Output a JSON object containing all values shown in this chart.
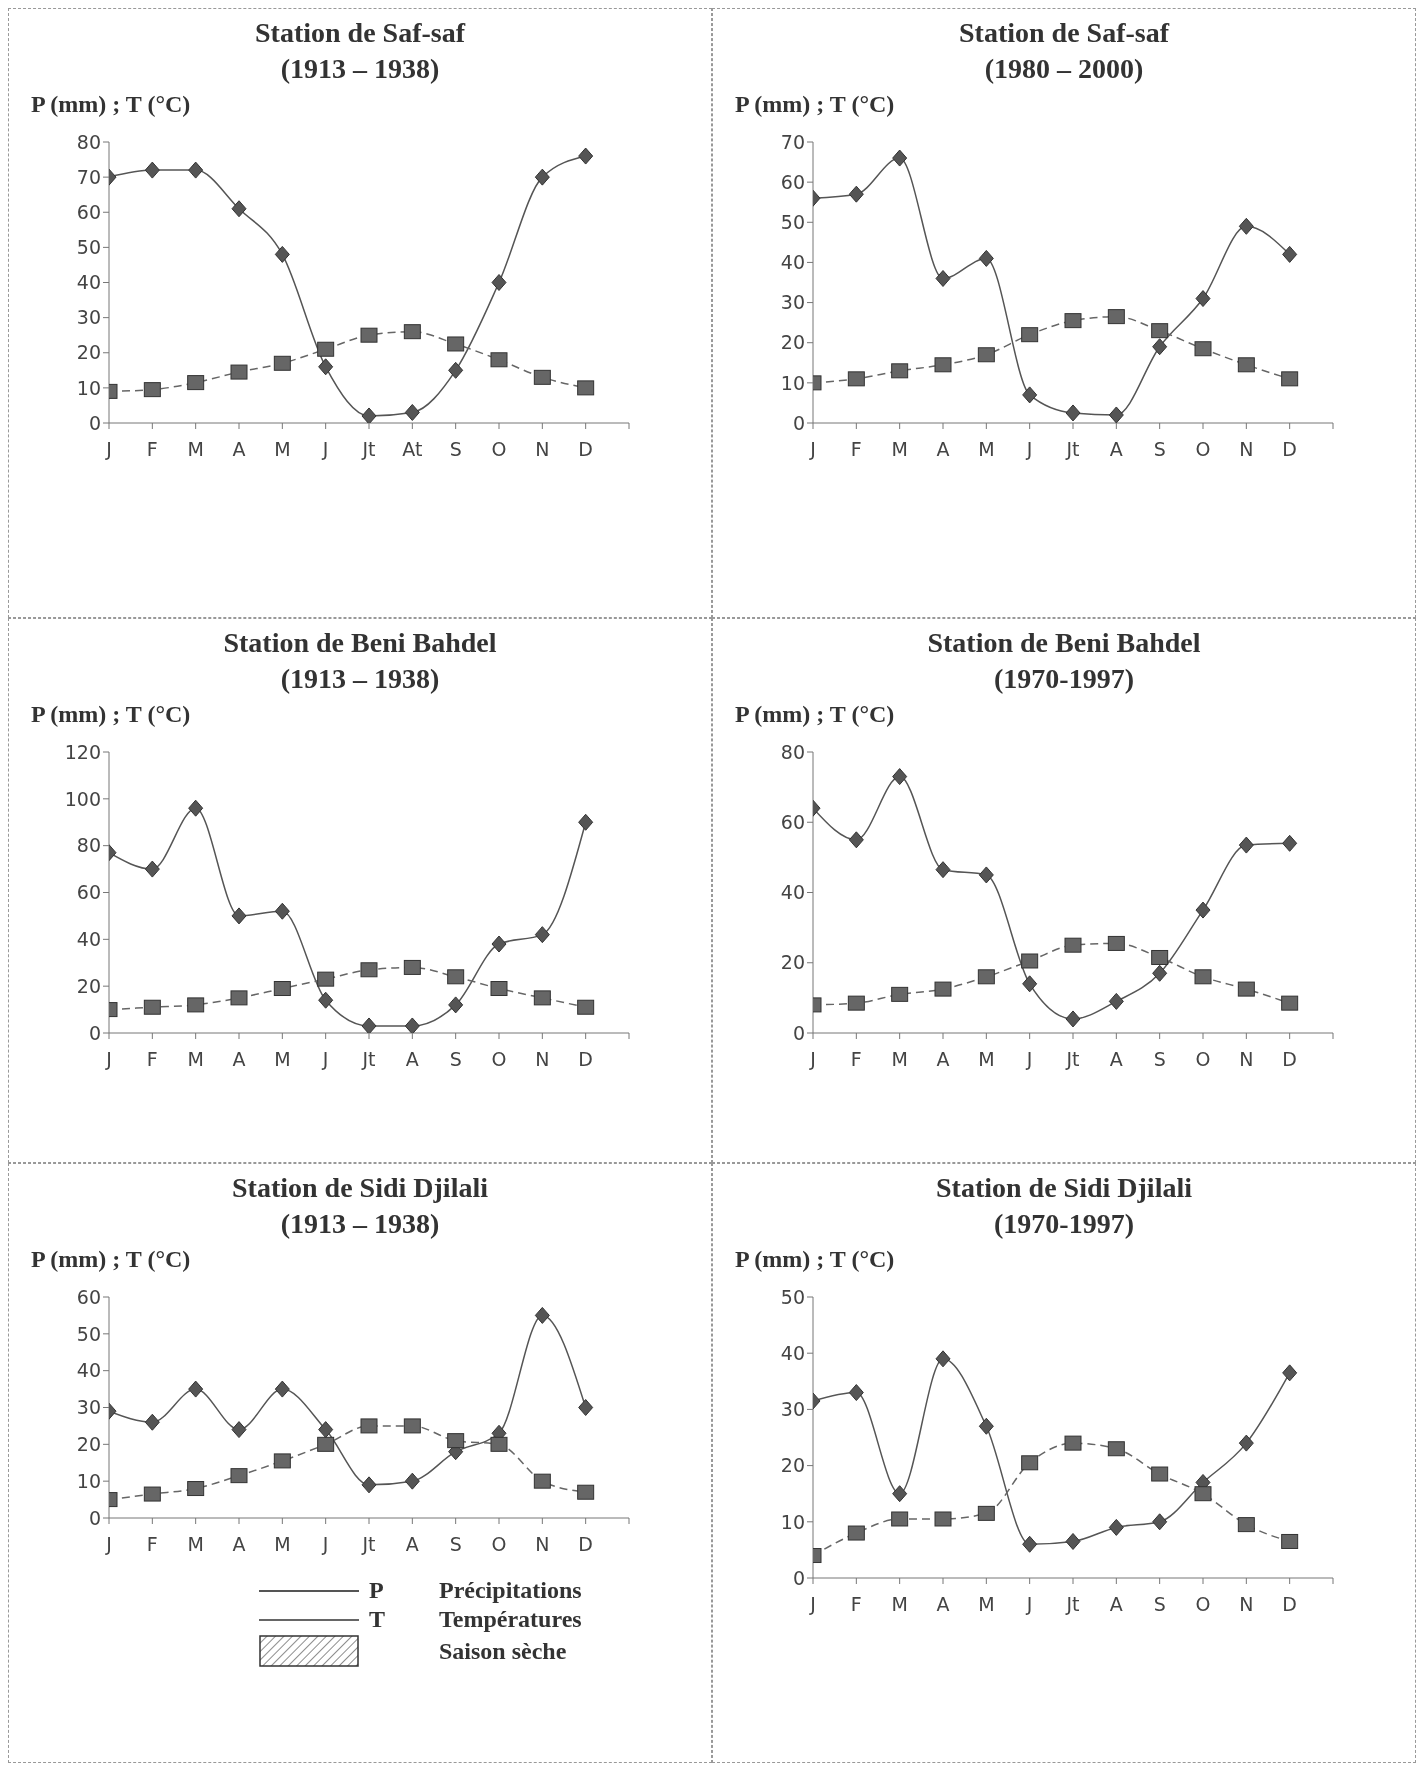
{
  "chart_data": [
    {
      "type": "line",
      "title": "Station de Saf-saf",
      "subtitle": "(1913 – 1938)",
      "ylabel": "P (mm) ; T (°C)",
      "categories": [
        "J",
        "F",
        "M",
        "A",
        "M",
        "J",
        "Jt",
        "At",
        "S",
        "O",
        "N",
        "D"
      ],
      "ylim": [
        0,
        80
      ],
      "yticks": [
        0,
        10,
        20,
        30,
        40,
        50,
        60,
        70,
        80
      ],
      "series": [
        {
          "color": "#555555",
          "marker": "diamond",
          "line_style": "solid",
          "values": [
            70,
            72,
            72,
            61,
            48,
            16,
            2,
            3,
            15,
            40,
            70,
            76
          ]
        },
        {
          "color": "#666666",
          "marker": "square",
          "line_style": "dashed",
          "values": [
            9,
            9.5,
            11.5,
            14.5,
            17,
            21,
            25,
            26,
            22.5,
            18,
            13,
            10
          ]
        }
      ]
    },
    {
      "type": "line",
      "title": "Station de Saf-saf",
      "subtitle": "(1980 – 2000)",
      "ylabel": "P (mm) ; T (°C)",
      "categories": [
        "J",
        "F",
        "M",
        "A",
        "M",
        "J",
        "Jt",
        "A",
        "S",
        "O",
        "N",
        "D"
      ],
      "ylim": [
        0,
        70
      ],
      "yticks": [
        0,
        10,
        20,
        30,
        40,
        50,
        60,
        70
      ],
      "series": [
        {
          "color": "#555555",
          "marker": "diamond",
          "line_style": "solid",
          "values": [
            56,
            57,
            66,
            36,
            41,
            7,
            2.5,
            2,
            19,
            31,
            49,
            42
          ]
        },
        {
          "color": "#666666",
          "marker": "square",
          "line_style": "dashed",
          "values": [
            10,
            11,
            13,
            14.5,
            17,
            22,
            25.5,
            26.5,
            23,
            18.5,
            14.5,
            11
          ]
        }
      ]
    },
    {
      "type": "line",
      "title": "Station de Beni Bahdel",
      "subtitle": "(1913 – 1938)",
      "ylabel": "P (mm) ; T (°C)",
      "categories": [
        "J",
        "F",
        "M",
        "A",
        "M",
        "J",
        "Jt",
        "A",
        "S",
        "O",
        "N",
        "D"
      ],
      "ylim": [
        0,
        120
      ],
      "yticks": [
        0,
        20,
        40,
        60,
        80,
        100,
        120
      ],
      "series": [
        {
          "color": "#555555",
          "marker": "diamond",
          "line_style": "solid",
          "values": [
            77,
            70,
            96,
            50,
            52,
            14,
            3,
            3,
            12,
            38,
            42,
            90
          ]
        },
        {
          "color": "#666666",
          "marker": "square",
          "line_style": "dashed",
          "values": [
            10,
            11,
            12,
            15,
            19,
            23,
            27,
            28,
            24,
            19,
            15,
            11
          ]
        }
      ]
    },
    {
      "type": "line",
      "title": "Station de Beni Bahdel",
      "subtitle": "(1970-1997)",
      "ylabel": "P (mm) ; T (°C)",
      "categories": [
        "J",
        "F",
        "M",
        "A",
        "M",
        "J",
        "Jt",
        "A",
        "S",
        "O",
        "N",
        "D"
      ],
      "ylim": [
        0,
        80
      ],
      "yticks": [
        0,
        20,
        40,
        60,
        80
      ],
      "series": [
        {
          "color": "#555555",
          "marker": "diamond",
          "line_style": "solid",
          "values": [
            64,
            55,
            73,
            46.5,
            45,
            14,
            4,
            9,
            17,
            35,
            53.5,
            54
          ]
        },
        {
          "color": "#666666",
          "marker": "square",
          "line_style": "dashed",
          "values": [
            8,
            8.5,
            11,
            12.5,
            16,
            20.5,
            25,
            25.5,
            21.5,
            16,
            12.5,
            8.5
          ]
        }
      ]
    },
    {
      "type": "line",
      "title": "Station de Sidi Djilali",
      "subtitle": "(1913 – 1938)",
      "ylabel": "P (mm) ; T (°C)",
      "categories": [
        "J",
        "F",
        "M",
        "A",
        "M",
        "J",
        "Jt",
        "A",
        "S",
        "O",
        "N",
        "D"
      ],
      "ylim": [
        0,
        60
      ],
      "yticks": [
        0,
        10,
        20,
        30,
        40,
        50,
        60
      ],
      "legend": "bottom",
      "annotations": [
        "Précipitations",
        "Températures",
        "Saison sèche"
      ],
      "series": [
        {
          "name": "P",
          "color": "#555555",
          "marker": "diamond",
          "line_style": "solid",
          "values": [
            29,
            26,
            35,
            24,
            35,
            24,
            9,
            10,
            18,
            23,
            55,
            30
          ]
        },
        {
          "name": "T",
          "color": "#666666",
          "marker": "square",
          "line_style": "dashed",
          "values": [
            5,
            6.5,
            8,
            11.5,
            15.5,
            20,
            25,
            25,
            21,
            20,
            10,
            7
          ]
        }
      ]
    },
    {
      "type": "line",
      "title": "Station de Sidi Djilali",
      "subtitle": "(1970-1997)",
      "ylabel": "P (mm) ; T (°C)",
      "categories": [
        "J",
        "F",
        "M",
        "A",
        "M",
        "J",
        "Jt",
        "A",
        "S",
        "O",
        "N",
        "D"
      ],
      "ylim": [
        0,
        50
      ],
      "yticks": [
        0,
        10,
        20,
        30,
        40,
        50
      ],
      "series": [
        {
          "color": "#555555",
          "marker": "diamond",
          "line_style": "solid",
          "values": [
            31.5,
            33,
            15,
            39,
            27,
            6,
            6.5,
            9,
            10,
            17,
            24,
            36.5
          ]
        },
        {
          "color": "#666666",
          "marker": "square",
          "line_style": "dashed",
          "values": [
            4,
            8,
            10.5,
            10.5,
            11.5,
            20.5,
            24,
            23,
            18.5,
            15,
            9.5,
            6.5
          ]
        }
      ]
    }
  ]
}
